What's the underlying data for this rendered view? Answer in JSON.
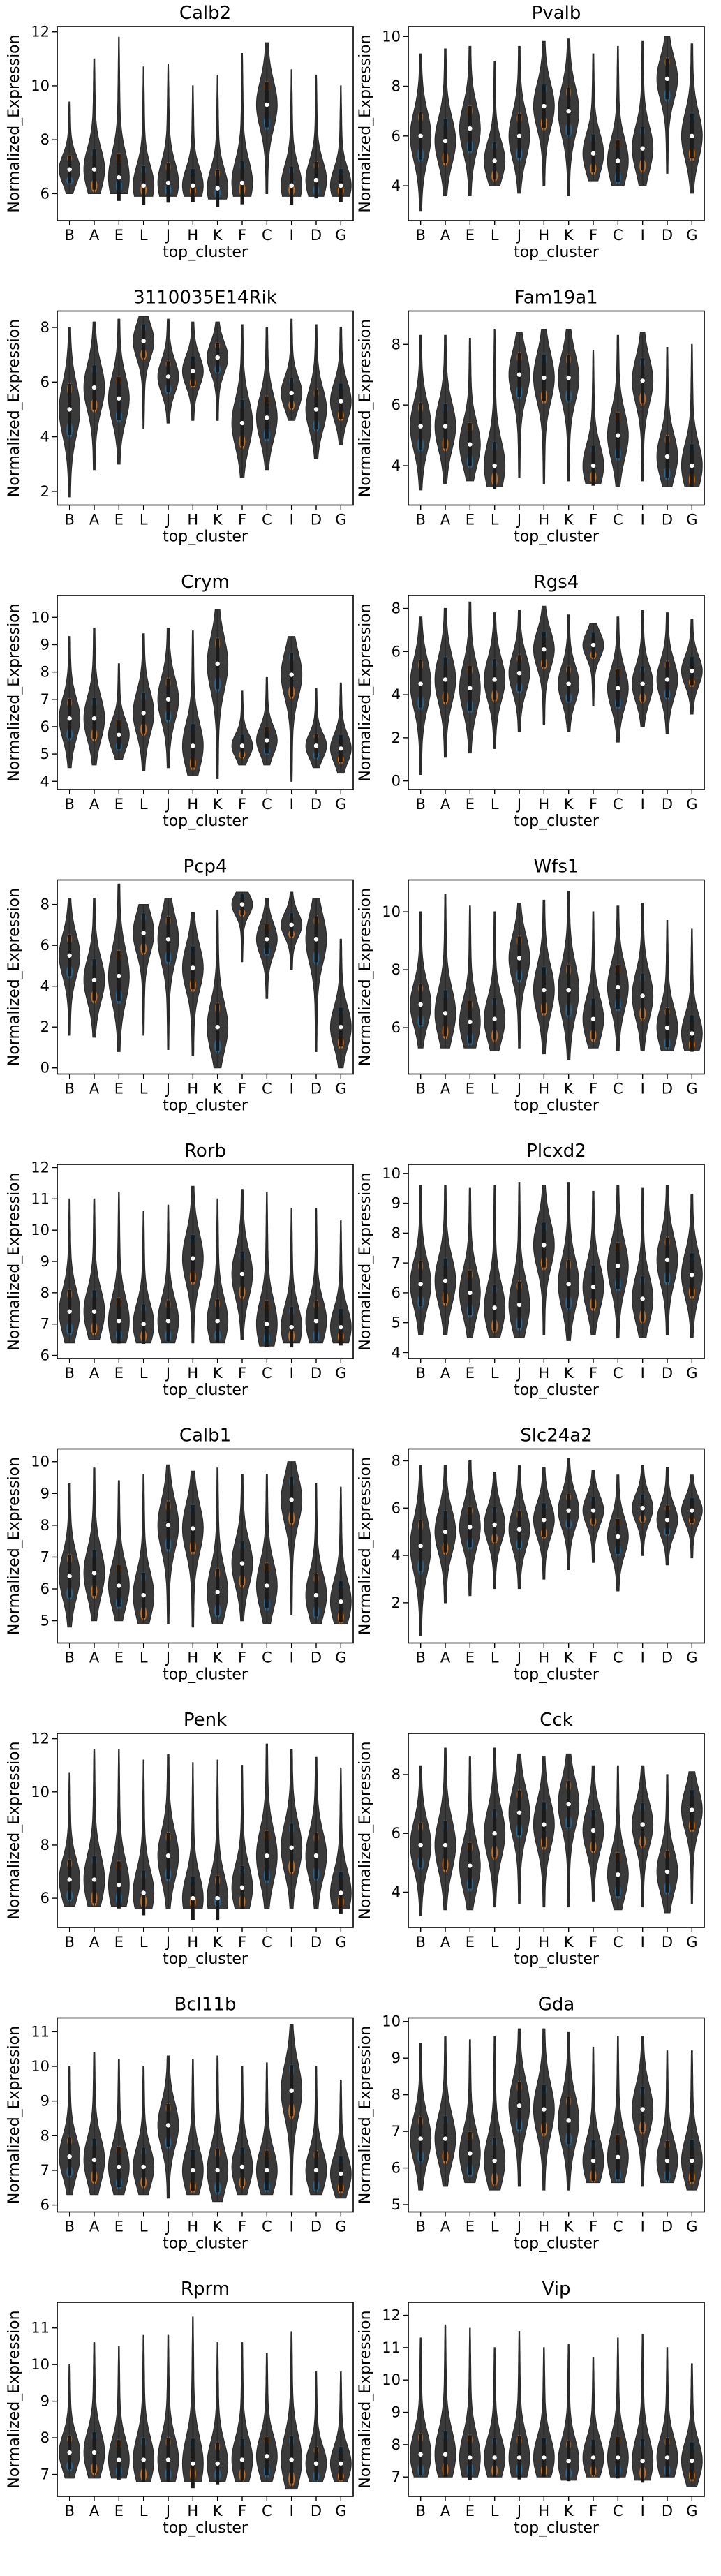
{
  "chart_data": {
    "type": "violin",
    "categories": [
      "B",
      "A",
      "E",
      "L",
      "J",
      "H",
      "K",
      "F",
      "C",
      "I",
      "D",
      "G"
    ],
    "xlabel": "top_cluster",
    "ylabel": "Normalized_Expression",
    "colors": {
      "violin_body": "#3a3a3a",
      "mode_a": "#1f77b4",
      "mode_b": "#ff7f0e",
      "median": "#ffffff"
    },
    "panels": [
      {
        "title": "Calb2",
        "ylim": [
          5,
          12.2
        ],
        "yticks": [
          6,
          8,
          10,
          12
        ],
        "medians": [
          6.9,
          6.9,
          6.6,
          6.3,
          6.4,
          6.3,
          6.2,
          6.4,
          9.3,
          6.3,
          6.5,
          6.3
        ],
        "lows": [
          6.0,
          6.0,
          6.0,
          5.9,
          5.9,
          5.9,
          5.8,
          5.9,
          6.0,
          5.9,
          5.9,
          5.9
        ],
        "highs": [
          9.4,
          11.0,
          11.8,
          10.7,
          10.8,
          10.0,
          10.4,
          11.2,
          11.6,
          10.6,
          10.4,
          10.0
        ]
      },
      {
        "title": "Pvalb",
        "ylim": [
          2.6,
          10.4
        ],
        "yticks": [
          4,
          6,
          8,
          10
        ],
        "medians": [
          6.0,
          5.8,
          6.3,
          5.0,
          6.0,
          7.2,
          7.0,
          5.3,
          5.0,
          5.5,
          8.3,
          6.0
        ],
        "lows": [
          3.0,
          3.6,
          3.6,
          4.0,
          3.7,
          4.0,
          3.6,
          4.2,
          4.0,
          4.0,
          4.5,
          3.7
        ],
        "highs": [
          9.3,
          9.5,
          9.6,
          9.0,
          9.6,
          9.8,
          9.9,
          9.3,
          9.6,
          9.8,
          10.0,
          9.7
        ]
      },
      {
        "title": "3110035E14Rik",
        "ylim": [
          1.5,
          8.6
        ],
        "yticks": [
          2,
          4,
          6,
          8
        ],
        "medians": [
          5.0,
          5.8,
          5.4,
          7.5,
          6.2,
          6.4,
          6.9,
          4.5,
          4.7,
          5.6,
          5.0,
          5.3
        ],
        "lows": [
          1.8,
          2.8,
          3.0,
          4.3,
          4.5,
          4.6,
          4.6,
          2.5,
          2.8,
          4.6,
          3.2,
          3.7
        ],
        "highs": [
          8.0,
          8.2,
          8.3,
          8.4,
          8.3,
          8.2,
          8.2,
          8.1,
          8.0,
          8.3,
          8.1,
          8.0
        ]
      },
      {
        "title": "Fam19a1",
        "ylim": [
          2.7,
          9.1
        ],
        "yticks": [
          4,
          6,
          8
        ],
        "medians": [
          5.3,
          5.3,
          4.7,
          4.0,
          7.0,
          6.9,
          6.9,
          4.0,
          5.0,
          6.8,
          4.3,
          4.0
        ],
        "lows": [
          3.2,
          3.4,
          3.5,
          3.3,
          3.6,
          3.4,
          3.5,
          3.4,
          3.3,
          3.5,
          3.3,
          3.3
        ],
        "highs": [
          8.3,
          8.3,
          8.2,
          8.5,
          8.4,
          8.5,
          8.5,
          7.8,
          8.3,
          8.4,
          7.9,
          8.0
        ]
      },
      {
        "title": "Crym",
        "ylim": [
          3.7,
          10.8
        ],
        "yticks": [
          4,
          5,
          6,
          7,
          8,
          9,
          10
        ],
        "medians": [
          6.3,
          6.3,
          5.7,
          6.5,
          7.0,
          5.3,
          8.3,
          5.3,
          5.5,
          7.9,
          5.3,
          5.2
        ],
        "lows": [
          4.5,
          4.6,
          4.8,
          4.4,
          4.5,
          4.2,
          4.1,
          4.6,
          4.6,
          4.0,
          4.5,
          4.3
        ],
        "highs": [
          9.3,
          9.6,
          8.3,
          9.4,
          9.6,
          9.5,
          10.3,
          7.3,
          7.8,
          9.3,
          7.4,
          7.6
        ]
      },
      {
        "title": "Rgs4",
        "ylim": [
          -0.4,
          8.6
        ],
        "yticks": [
          0,
          2,
          4,
          6,
          8
        ],
        "medians": [
          4.5,
          4.7,
          4.3,
          4.7,
          5.0,
          6.1,
          4.5,
          6.3,
          4.3,
          4.5,
          4.7,
          5.1
        ],
        "lows": [
          0.3,
          1.1,
          1.3,
          1.5,
          2.3,
          2.6,
          2.3,
          3.5,
          1.8,
          2.5,
          2.2,
          3.1
        ],
        "highs": [
          7.6,
          8.0,
          8.3,
          7.8,
          7.9,
          8.1,
          7.7,
          7.3,
          7.6,
          7.9,
          7.8,
          7.5
        ]
      },
      {
        "title": "Pcp4",
        "ylim": [
          -0.3,
          9.2
        ],
        "yticks": [
          0,
          2,
          4,
          6,
          8
        ],
        "medians": [
          5.5,
          4.3,
          4.5,
          6.6,
          6.3,
          4.9,
          2.0,
          8.0,
          6.3,
          7.0,
          6.3,
          2.0
        ],
        "lows": [
          1.6,
          1.5,
          0.8,
          1.6,
          0.9,
          0.6,
          0.0,
          5.2,
          3.4,
          4.8,
          0.8,
          0.0
        ],
        "highs": [
          8.3,
          8.3,
          9.0,
          8.0,
          8.3,
          7.6,
          7.7,
          8.6,
          8.3,
          8.6,
          8.3,
          6.3
        ]
      },
      {
        "title": "Wfs1",
        "ylim": [
          4.4,
          11.1
        ],
        "yticks": [
          6,
          8,
          10
        ],
        "medians": [
          6.8,
          6.5,
          6.2,
          6.3,
          8.4,
          7.3,
          7.3,
          6.3,
          7.4,
          7.1,
          6.0,
          5.8
        ],
        "lows": [
          5.3,
          5.3,
          5.3,
          5.2,
          5.3,
          5.1,
          4.9,
          5.3,
          5.2,
          5.2,
          5.2,
          5.2
        ],
        "highs": [
          10.0,
          10.6,
          10.2,
          10.0,
          10.3,
          10.4,
          10.7,
          10.0,
          10.2,
          10.3,
          9.7,
          9.4
        ]
      },
      {
        "title": "Rorb",
        "ylim": [
          5.9,
          12.1
        ],
        "yticks": [
          6,
          7,
          8,
          9,
          10,
          11,
          12
        ],
        "medians": [
          7.4,
          7.4,
          7.1,
          7.0,
          7.1,
          9.1,
          7.1,
          8.6,
          7.0,
          6.9,
          7.1,
          6.9
        ],
        "lows": [
          6.4,
          6.5,
          6.4,
          6.4,
          6.4,
          6.4,
          6.4,
          6.5,
          6.3,
          6.4,
          6.4,
          6.4
        ],
        "highs": [
          11.0,
          11.0,
          11.2,
          10.6,
          10.8,
          11.4,
          11.0,
          11.3,
          11.2,
          10.7,
          10.7,
          10.3
        ]
      },
      {
        "title": "Plcxd2",
        "ylim": [
          3.8,
          10.3
        ],
        "yticks": [
          4,
          5,
          6,
          7,
          8,
          9,
          10
        ],
        "medians": [
          6.3,
          6.4,
          6.0,
          5.5,
          5.6,
          7.6,
          6.3,
          6.2,
          6.9,
          5.8,
          7.1,
          6.6
        ],
        "lows": [
          4.6,
          4.6,
          4.5,
          4.5,
          4.5,
          4.6,
          4.4,
          4.6,
          4.5,
          4.5,
          4.6,
          4.5
        ],
        "highs": [
          9.6,
          9.6,
          9.5,
          9.6,
          9.7,
          9.6,
          9.7,
          9.4,
          9.6,
          9.5,
          9.6,
          9.3
        ]
      },
      {
        "title": "Calb1",
        "ylim": [
          4.3,
          10.4
        ],
        "yticks": [
          5,
          6,
          7,
          8,
          9,
          10
        ],
        "medians": [
          6.4,
          6.5,
          6.1,
          5.8,
          8.0,
          7.9,
          5.9,
          6.8,
          6.1,
          8.8,
          5.8,
          5.6
        ],
        "lows": [
          4.8,
          5.0,
          5.0,
          4.9,
          4.9,
          4.8,
          4.9,
          5.0,
          4.9,
          5.2,
          4.9,
          4.9
        ],
        "highs": [
          9.3,
          9.8,
          9.4,
          9.6,
          9.9,
          9.7,
          9.8,
          9.6,
          9.6,
          10.0,
          9.3,
          9.2
        ]
      },
      {
        "title": "Slc24a2",
        "ylim": [
          0.3,
          8.5
        ],
        "yticks": [
          2,
          4,
          6,
          8
        ],
        "medians": [
          4.4,
          5.0,
          5.2,
          5.3,
          5.1,
          5.5,
          5.9,
          5.9,
          4.8,
          6.0,
          5.5,
          5.9
        ],
        "lows": [
          0.6,
          2.0,
          2.3,
          2.6,
          2.6,
          3.0,
          3.4,
          3.7,
          2.5,
          4.0,
          3.6,
          3.9
        ],
        "highs": [
          7.8,
          7.8,
          8.0,
          7.5,
          7.8,
          7.7,
          8.1,
          7.6,
          7.4,
          7.8,
          7.7,
          7.4
        ]
      },
      {
        "title": "Penk",
        "ylim": [
          4.9,
          12.2
        ],
        "yticks": [
          6,
          8,
          10,
          12
        ],
        "medians": [
          6.7,
          6.7,
          6.5,
          6.2,
          7.6,
          6.0,
          6.0,
          6.4,
          7.6,
          7.9,
          7.6,
          6.2
        ],
        "lows": [
          5.7,
          5.7,
          5.7,
          5.6,
          5.6,
          5.6,
          5.6,
          5.6,
          5.6,
          5.6,
          5.6,
          5.6
        ],
        "highs": [
          10.7,
          11.6,
          11.6,
          11.2,
          11.4,
          11.1,
          11.2,
          11.0,
          11.8,
          11.6,
          11.3,
          10.9
        ]
      },
      {
        "title": "Cck",
        "ylim": [
          2.8,
          9.4
        ],
        "yticks": [
          4,
          6,
          8
        ],
        "medians": [
          5.6,
          5.6,
          4.9,
          6.0,
          6.7,
          6.3,
          7.0,
          6.1,
          4.6,
          6.3,
          4.7,
          6.8
        ],
        "lows": [
          3.2,
          3.4,
          3.4,
          3.5,
          3.6,
          3.5,
          3.5,
          3.7,
          3.4,
          3.5,
          3.3,
          3.6
        ],
        "highs": [
          8.3,
          8.9,
          8.6,
          8.9,
          8.7,
          8.6,
          8.7,
          8.3,
          8.3,
          8.3,
          8.0,
          8.1
        ]
      },
      {
        "title": "Bcl11b",
        "ylim": [
          5.8,
          11.4
        ],
        "yticks": [
          6,
          7,
          8,
          9,
          10,
          11
        ],
        "medians": [
          7.4,
          7.3,
          7.1,
          7.1,
          8.3,
          7.0,
          7.0,
          7.1,
          7.0,
          9.3,
          7.0,
          6.9
        ],
        "lows": [
          6.3,
          6.3,
          6.3,
          6.3,
          6.2,
          6.3,
          6.1,
          6.3,
          6.3,
          6.3,
          6.3,
          6.2
        ],
        "highs": [
          10.0,
          10.4,
          10.2,
          10.0,
          10.3,
          10.2,
          10.3,
          10.0,
          10.1,
          11.2,
          10.0,
          9.6
        ]
      },
      {
        "title": "Gda",
        "ylim": [
          4.8,
          10.1
        ],
        "yticks": [
          5,
          6,
          7,
          8,
          9,
          10
        ],
        "medians": [
          6.8,
          6.8,
          6.4,
          6.2,
          7.7,
          7.6,
          7.3,
          6.2,
          6.3,
          7.6,
          6.2,
          6.2
        ],
        "lows": [
          5.4,
          5.5,
          5.6,
          5.4,
          5.5,
          5.4,
          5.4,
          5.6,
          5.6,
          5.5,
          5.6,
          5.4
        ],
        "highs": [
          9.4,
          9.6,
          9.5,
          9.6,
          9.8,
          9.8,
          9.7,
          9.3,
          9.6,
          9.6,
          9.2,
          9.2
        ]
      },
      {
        "title": "Rprm",
        "ylim": [
          6.4,
          11.7
        ],
        "yticks": [
          7,
          8,
          9,
          10,
          11
        ],
        "medians": [
          7.6,
          7.6,
          7.4,
          7.4,
          7.4,
          7.3,
          7.3,
          7.4,
          7.5,
          7.4,
          7.3,
          7.3
        ],
        "lows": [
          6.9,
          6.9,
          6.9,
          6.8,
          6.8,
          6.8,
          6.8,
          6.8,
          6.8,
          6.6,
          6.8,
          6.8
        ],
        "highs": [
          10.0,
          10.6,
          10.5,
          10.8,
          10.8,
          11.3,
          10.6,
          10.6,
          10.3,
          10.9,
          9.8,
          9.8
        ]
      },
      {
        "title": "Vip",
        "ylim": [
          6.4,
          12.4
        ],
        "yticks": [
          7,
          8,
          9,
          10,
          11,
          12
        ],
        "medians": [
          7.7,
          7.7,
          7.6,
          7.6,
          7.6,
          7.6,
          7.5,
          7.6,
          7.6,
          7.5,
          7.6,
          7.5
        ],
        "lows": [
          7.0,
          7.0,
          7.0,
          7.0,
          7.0,
          7.0,
          6.9,
          7.0,
          7.0,
          6.9,
          7.0,
          6.7
        ],
        "highs": [
          11.3,
          11.7,
          11.6,
          11.0,
          11.5,
          11.0,
          11.1,
          10.7,
          11.3,
          11.4,
          11.0,
          10.5
        ]
      }
    ]
  }
}
